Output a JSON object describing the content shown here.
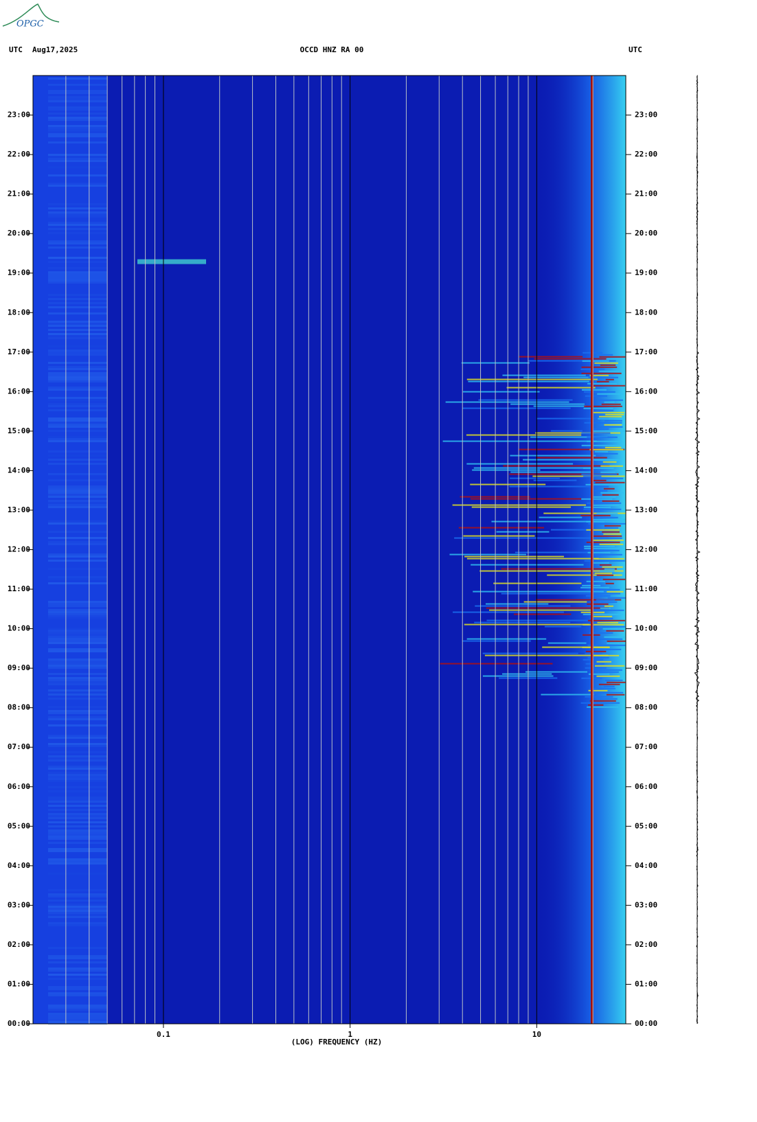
{
  "chart_data": {
    "type": "spectrogram",
    "logo": "OPGC",
    "left_header": "UTC",
    "date": "Aug17,2025",
    "title": "OCCD HNZ RA 00",
    "right_header": "UTC",
    "xlabel": "(LOG) FREQUENCY (HZ)",
    "xscale": "log",
    "xlim": [
      0.02,
      30
    ],
    "xticks": [
      0.1,
      1,
      10
    ],
    "xgrid_minor": [
      0.03,
      0.04,
      0.05,
      0.06,
      0.07,
      0.08,
      0.09,
      0.2,
      0.3,
      0.4,
      0.5,
      0.6,
      0.7,
      0.8,
      0.9,
      2,
      3,
      4,
      5,
      6,
      7,
      8,
      9,
      20
    ],
    "ylim": [
      0,
      24
    ],
    "yticks": [
      {
        "value": 0,
        "label": "00:00"
      },
      {
        "value": 1,
        "label": "01:00"
      },
      {
        "value": 2,
        "label": "02:00"
      },
      {
        "value": 3,
        "label": "03:00"
      },
      {
        "value": 4,
        "label": "04:00"
      },
      {
        "value": 5,
        "label": "05:00"
      },
      {
        "value": 6,
        "label": "06:00"
      },
      {
        "value": 7,
        "label": "07:00"
      },
      {
        "value": 8,
        "label": "08:00"
      },
      {
        "value": 9,
        "label": "09:00"
      },
      {
        "value": 10,
        "label": "10:00"
      },
      {
        "value": 11,
        "label": "11:00"
      },
      {
        "value": 12,
        "label": "12:00"
      },
      {
        "value": 13,
        "label": "13:00"
      },
      {
        "value": 14,
        "label": "14:00"
      },
      {
        "value": 15,
        "label": "15:00"
      },
      {
        "value": 16,
        "label": "16:00"
      },
      {
        "value": 17,
        "label": "17:00"
      },
      {
        "value": 18,
        "label": "18:00"
      },
      {
        "value": 19,
        "label": "19:00"
      },
      {
        "value": 20,
        "label": "20:00"
      },
      {
        "value": 21,
        "label": "21:00"
      },
      {
        "value": 22,
        "label": "22:00"
      },
      {
        "value": 23,
        "label": "23:00"
      }
    ]
  }
}
